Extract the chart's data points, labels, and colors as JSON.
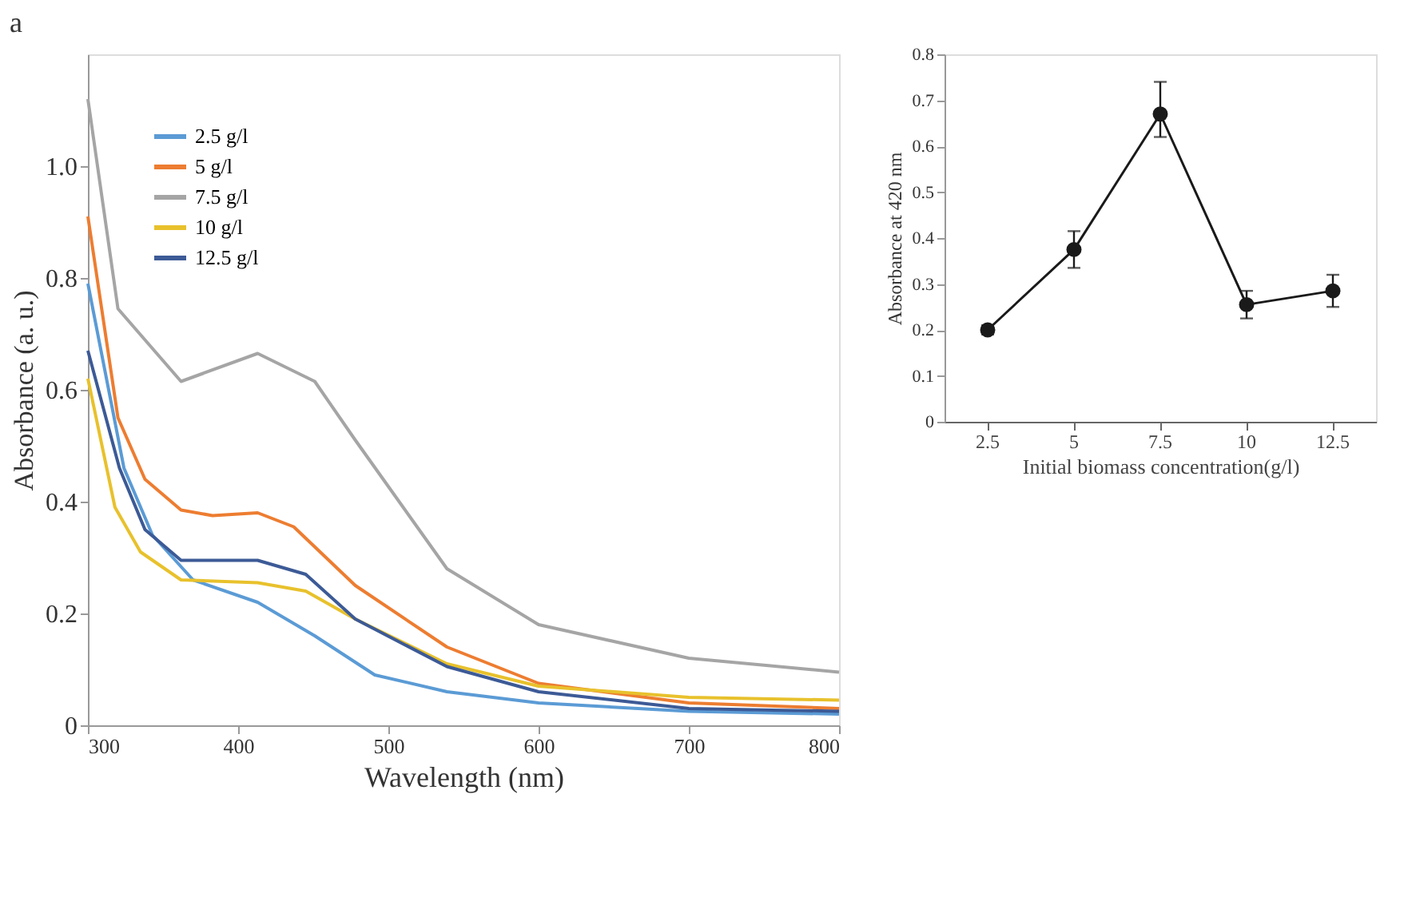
{
  "chart_data": [
    {
      "type": "line",
      "title": "a",
      "xlabel": "Wavelength (nm)",
      "ylabel": "Absorbance (a. u.)",
      "xlim": [
        300,
        800
      ],
      "xticks": [
        300,
        400,
        500,
        600,
        700,
        800
      ],
      "ylim": [
        0,
        1.2
      ],
      "yticks": [
        0,
        0.2,
        0.4,
        0.6,
        0.8,
        {
          "value": 1,
          "label": "1.0"
        }
      ],
      "grid": false,
      "legend": "top left",
      "marker": "none",
      "line_style": "solid",
      "series": [
        {
          "name": "2.5 g/l",
          "color": "#5b9bd5",
          "x": [
            300,
            324,
            343,
            370,
            413,
            451,
            491,
            539,
            600,
            700,
            800
          ],
          "values": [
            0.79,
            0.46,
            0.34,
            0.26,
            0.22,
            0.16,
            0.09,
            0.06,
            0.04,
            0.025,
            0.02
          ]
        },
        {
          "name": "5 g/l",
          "color": "#ed7d31",
          "x": [
            300,
            320,
            338,
            362,
            383,
            413,
            437,
            478,
            539,
            600,
            700,
            800
          ],
          "values": [
            0.91,
            0.55,
            0.44,
            0.385,
            0.375,
            0.38,
            0.355,
            0.25,
            0.14,
            0.075,
            0.04,
            0.03
          ]
        },
        {
          "name": "7.5 g/l",
          "color": "#a5a5a5",
          "x": [
            300,
            320,
            362,
            413,
            451,
            478,
            539,
            600,
            700,
            800
          ],
          "values": [
            1.12,
            0.745,
            0.615,
            0.665,
            0.615,
            0.51,
            0.28,
            0.18,
            0.12,
            0.095
          ]
        },
        {
          "name": "10 g/l",
          "color": "#e8c12c",
          "x": [
            300,
            318,
            335,
            362,
            413,
            445,
            478,
            539,
            600,
            700,
            800
          ],
          "values": [
            0.62,
            0.39,
            0.31,
            0.26,
            0.255,
            0.24,
            0.19,
            0.11,
            0.07,
            0.05,
            0.045
          ]
        },
        {
          "name": "12.5 g/l",
          "color": "#3c5a96",
          "x": [
            300,
            321,
            338,
            362,
            413,
            445,
            478,
            539,
            600,
            700,
            800
          ],
          "values": [
            0.67,
            0.46,
            0.35,
            0.295,
            0.295,
            0.27,
            0.19,
            0.105,
            0.06,
            0.03,
            0.025
          ]
        }
      ]
    },
    {
      "type": "line",
      "xlabel": "Initial biomass concentration(g/l)",
      "ylabel": "Absorbance at 420 nm",
      "categories": [
        "2.5",
        "5",
        "7.5",
        "10",
        "12.5"
      ],
      "ylim": [
        0,
        0.8
      ],
      "yticks": [
        0,
        0.1,
        0.2,
        0.3,
        0.4,
        0.5,
        0.6,
        0.7,
        0.8
      ],
      "grid": false,
      "marker": "circle",
      "line_style": "solid",
      "series": [
        {
          "color": "#1a1a1a",
          "values": [
            0.2,
            0.375,
            0.67,
            0.255,
            0.285
          ],
          "errors": [
            0.01,
            0.04,
            [
              0.62,
              0.74
            ],
            0.03,
            0.035
          ]
        }
      ]
    }
  ]
}
